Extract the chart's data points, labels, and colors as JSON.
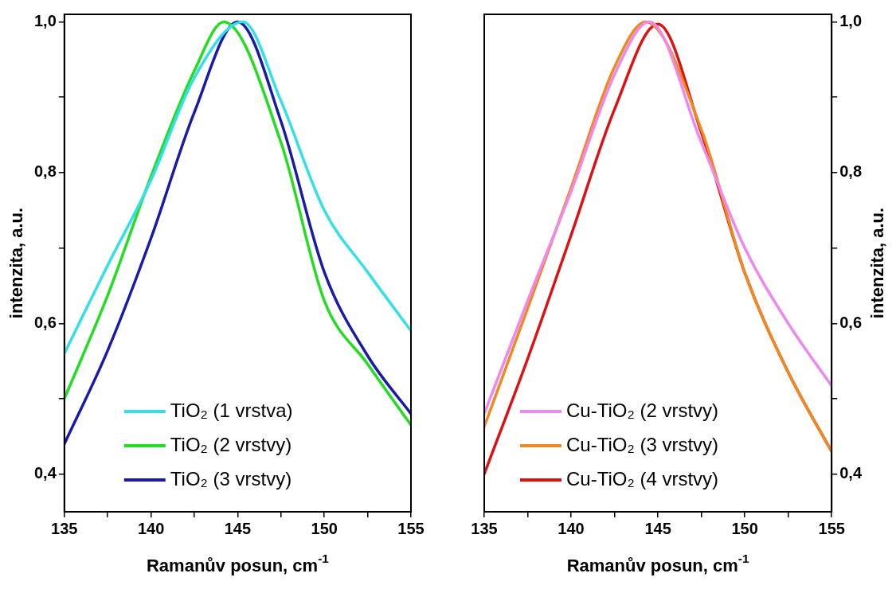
{
  "chart_data": [
    {
      "type": "line",
      "xlabel": "Ramanův posun, cm$^{-1}$",
      "ylabel": "intenzita, a.u.",
      "xlim": [
        135,
        155
      ],
      "xticks": [
        135,
        {
          "value": 137.5,
          "label": null
        },
        140,
        {
          "value": 142.5,
          "label": null
        },
        145,
        {
          "value": 147.5,
          "label": null
        },
        150,
        {
          "value": 152.5,
          "label": null
        },
        155
      ],
      "ylim": [
        0.35,
        1.01
      ],
      "yticks": [
        {
          "value": 0.4,
          "label": "0,4"
        },
        {
          "value": 0.5,
          "label": null
        },
        {
          "value": 0.6,
          "label": "0,6"
        },
        {
          "value": 0.7,
          "label": null
        },
        {
          "value": 0.8,
          "label": "0,8"
        },
        {
          "value": 0.9,
          "label": null
        },
        {
          "value": 1.0,
          "label": "1,0"
        }
      ],
      "grid": false,
      "legend": "bottom",
      "marker": "none",
      "line_style": "solid",
      "series": [
        {
          "name": "TiO₂ (1 vrstva)",
          "color": "#33e0e8",
          "x": [
            135,
            137.5,
            140,
            142.5,
            145.3,
            147.5,
            150,
            152.5,
            155
          ],
          "values": [
            0.56,
            0.677,
            0.79,
            0.926,
            1.0,
            0.895,
            0.75,
            0.668,
            0.59
          ]
        },
        {
          "name": "TiO₂ (2 vrstvy)",
          "color": "#22dd22",
          "x": [
            135,
            137.5,
            140,
            142.5,
            144.2,
            147.5,
            150,
            152.5,
            155
          ],
          "values": [
            0.5,
            0.637,
            0.795,
            0.935,
            1.0,
            0.84,
            0.63,
            0.546,
            0.465
          ]
        },
        {
          "name": "TiO₂ (3 vrstvy)",
          "color": "#1a1aaa",
          "x": [
            135,
            137.5,
            140,
            142.5,
            145,
            147.5,
            150,
            152.5,
            155
          ],
          "values": [
            0.44,
            0.564,
            0.713,
            0.88,
            1.0,
            0.868,
            0.668,
            0.557,
            0.48
          ]
        }
      ]
    },
    {
      "type": "line",
      "xlabel": "Ramanův posun, cm$^{-1}$",
      "y2label": "intenzita, a.u.",
      "xlim": [
        135,
        155
      ],
      "xticks": [
        135,
        {
          "value": 137.5,
          "label": null
        },
        140,
        {
          "value": 142.5,
          "label": null
        },
        145,
        {
          "value": 147.5,
          "label": null
        },
        150,
        {
          "value": 152.5,
          "label": null
        },
        155
      ],
      "y2lim": [
        0.35,
        1.01
      ],
      "y2ticks": [
        {
          "value": 0.4,
          "label": "0,4"
        },
        {
          "value": 0.5,
          "label": null
        },
        {
          "value": 0.6,
          "label": "0,6"
        },
        {
          "value": 0.7,
          "label": null
        },
        {
          "value": 0.8,
          "label": "0,8"
        },
        {
          "value": 0.9,
          "label": null
        },
        {
          "value": 1.0,
          "label": "1,0"
        }
      ],
      "grid": false,
      "legend": "bottom",
      "marker": "none",
      "line_style": "solid",
      "series": [
        {
          "name": "Cu-TiO₂ (2 vrstvy)",
          "color": "#ee88ee",
          "axis": "y2",
          "x": [
            135,
            137.5,
            140,
            142.5,
            144.5,
            147.5,
            150,
            152.5,
            155
          ],
          "values": [
            0.48,
            0.63,
            0.775,
            0.93,
            1.0,
            0.84,
            0.7,
            0.6,
            0.517
          ]
        },
        {
          "name": "Cu-TiO₂ (3 vrstvy)",
          "color": "#f08a20",
          "axis": "y2",
          "x": [
            135,
            137.5,
            140,
            142.5,
            144.3,
            147.5,
            150,
            152.5,
            155
          ],
          "values": [
            0.463,
            0.62,
            0.78,
            0.94,
            1.0,
            0.857,
            0.667,
            0.535,
            0.43
          ]
        },
        {
          "name": "Cu-TiO₂ (4 vrstvy)",
          "color": "#dd1111",
          "axis": "y2",
          "x": [
            135,
            137.5,
            140,
            142.5,
            145,
            147.5,
            150,
            152.5,
            155
          ],
          "values": [
            0.4,
            0.553,
            0.717,
            0.884,
            0.997,
            0.853,
            0.667,
            0.535,
            0.43
          ]
        }
      ]
    }
  ]
}
